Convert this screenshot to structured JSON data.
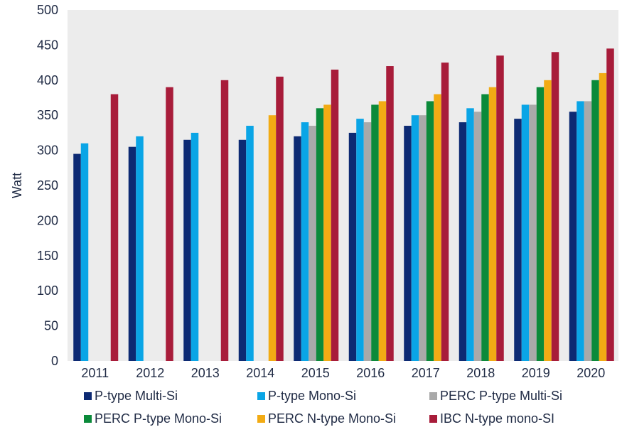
{
  "chart_data": {
    "type": "bar",
    "title": "",
    "xlabel": "",
    "ylabel": "Watt",
    "ylim": [
      0,
      500
    ],
    "yticks": [
      0,
      50,
      100,
      150,
      200,
      250,
      300,
      350,
      400,
      450,
      500
    ],
    "grid": false,
    "legend_position": "bottom",
    "plot_background": "#ececec",
    "categories": [
      "2011",
      "2012",
      "2013",
      "2014",
      "2015",
      "2016",
      "2017",
      "2018",
      "2019",
      "2020"
    ],
    "series": [
      {
        "name": "P-type Multi-Si",
        "color": "#0d2a73",
        "values": [
          295,
          305,
          315,
          315,
          320,
          325,
          335,
          340,
          345,
          355
        ]
      },
      {
        "name": "P-type Mono-Si",
        "color": "#0aa5e6",
        "values": [
          310,
          320,
          325,
          335,
          340,
          345,
          350,
          360,
          365,
          370
        ]
      },
      {
        "name": "PERC P-type Multi-Si",
        "color": "#a9a9a9",
        "values": [
          null,
          null,
          null,
          null,
          335,
          340,
          350,
          355,
          365,
          370
        ]
      },
      {
        "name": "PERC P-type Mono-Si",
        "color": "#0b8a3a",
        "values": [
          null,
          null,
          null,
          null,
          360,
          365,
          370,
          380,
          390,
          400
        ]
      },
      {
        "name": "PERC N-type Mono-Si",
        "color": "#f2ab14",
        "values": [
          null,
          null,
          null,
          350,
          365,
          370,
          380,
          390,
          400,
          410
        ]
      },
      {
        "name": "IBC N-type mono-SI",
        "color": "#a81c3a",
        "values": [
          380,
          390,
          400,
          405,
          415,
          420,
          425,
          435,
          440,
          445
        ]
      }
    ]
  }
}
